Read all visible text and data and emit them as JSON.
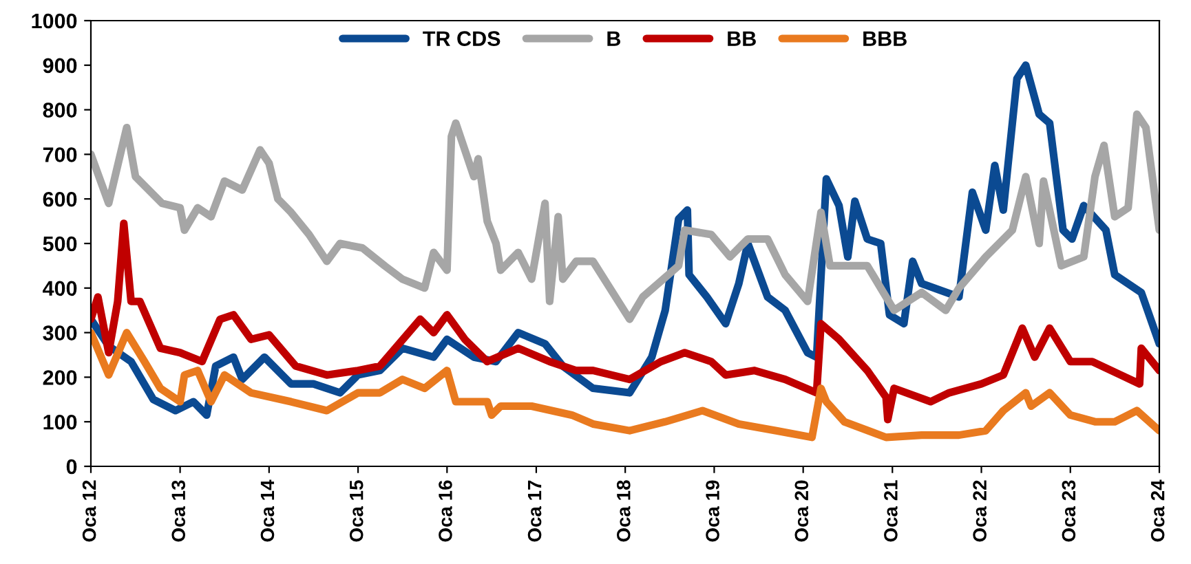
{
  "chart_data": {
    "type": "line",
    "xlim": [
      "2012-01-01",
      "2024-01-01"
    ],
    "ylim": [
      0,
      1000
    ],
    "xticks": [
      {
        "value": "2012-01-01",
        "label": "Oca 12"
      },
      {
        "value": "2013-01-01",
        "label": "Oca 13"
      },
      {
        "value": "2014-01-01",
        "label": "Oca 14"
      },
      {
        "value": "2015-01-01",
        "label": "Oca 15"
      },
      {
        "value": "2016-01-01",
        "label": "Oca 16"
      },
      {
        "value": "2017-01-01",
        "label": "Oca 17"
      },
      {
        "value": "2018-01-01",
        "label": "Oca 18"
      },
      {
        "value": "2019-01-01",
        "label": "Oca 19"
      },
      {
        "value": "2020-01-01",
        "label": "Oca 20"
      },
      {
        "value": "2021-01-01",
        "label": "Oca 21"
      },
      {
        "value": "2022-01-01",
        "label": "Oca 22"
      },
      {
        "value": "2023-01-01",
        "label": "Oca 23"
      },
      {
        "value": "2024-01-01",
        "label": "Oca 24"
      }
    ],
    "yticks": [
      0,
      100,
      200,
      300,
      400,
      500,
      600,
      700,
      800,
      900,
      1000
    ],
    "grid": false,
    "legend": "top",
    "marker": "none",
    "line_style": "solid",
    "series": [
      {
        "name": "TR CDS",
        "color": "#0b4a92",
        "x": [
          "2012-01-01",
          "2012-03-14",
          "2012-06-14",
          "2012-09-13",
          "2012-12-13",
          "2013-02-25",
          "2013-04-20",
          "2013-05-27",
          "2013-08-08",
          "2013-09-13",
          "2013-12-13",
          "2014-04-01",
          "2014-07-02",
          "2014-10-19",
          "2015-01-01",
          "2015-04-01",
          "2015-07-02",
          "2015-11-07",
          "2016-01-01",
          "2016-04-20",
          "2016-07-20",
          "2016-10-19",
          "2017-02-06",
          "2017-04-20",
          "2017-08-22",
          "2018-01-19",
          "2018-04-20",
          "2018-06-14",
          "2018-08-08",
          "2018-09-13",
          "2018-09-20",
          "2018-12-02",
          "2019-02-17",
          "2019-04-12",
          "2019-05-19",
          "2019-08-08",
          "2019-10-19",
          "2020-01-19",
          "2020-02-25",
          "2020-04-05",
          "2020-05-27",
          "2020-07-02",
          "2020-07-31",
          "2020-09-20",
          "2020-11-14",
          "2020-12-20",
          "2021-02-17",
          "2021-03-25",
          "2021-05-01",
          "2021-10-01",
          "2021-11-25",
          "2022-01-19",
          "2022-02-25",
          "2022-04-01",
          "2022-05-27",
          "2022-07-02",
          "2022-08-26",
          "2022-10-08",
          "2022-12-02",
          "2023-01-08",
          "2023-02-25",
          "2023-05-27",
          "2023-07-02",
          "2023-10-19",
          "2024-01-01"
        ],
        "values": [
          330,
          270,
          235,
          150,
          125,
          145,
          115,
          225,
          245,
          195,
          245,
          185,
          185,
          165,
          205,
          215,
          265,
          245,
          285,
          245,
          235,
          300,
          275,
          225,
          175,
          165,
          245,
          350,
          555,
          575,
          430,
          380,
          320,
          410,
          500,
          380,
          350,
          255,
          245,
          645,
          585,
          470,
          595,
          510,
          500,
          340,
          320,
          460,
          410,
          380,
          615,
          530,
          675,
          575,
          870,
          900,
          790,
          770,
          530,
          510,
          585,
          530,
          430,
          390,
          275
        ]
      },
      {
        "name": "B",
        "color": "#a6a6a6",
        "x": [
          "2012-01-01",
          "2012-03-14",
          "2012-05-27",
          "2012-07-02",
          "2012-10-19",
          "2013-01-01",
          "2013-01-19",
          "2013-03-14",
          "2013-05-08",
          "2013-07-02",
          "2013-09-13",
          "2013-11-25",
          "2014-01-01",
          "2014-02-06",
          "2014-04-01",
          "2014-06-14",
          "2014-08-26",
          "2014-10-19",
          "2015-01-19",
          "2015-04-20",
          "2015-07-02",
          "2015-10-01",
          "2015-11-07",
          "2016-01-01",
          "2016-01-19",
          "2016-02-06",
          "2016-04-20",
          "2016-05-08",
          "2016-06-14",
          "2016-07-20",
          "2016-08-08",
          "2016-10-19",
          "2016-12-13",
          "2017-02-06",
          "2017-02-25",
          "2017-04-01",
          "2017-04-20",
          "2017-06-14",
          "2017-08-22",
          "2018-01-19",
          "2018-03-14",
          "2018-08-08",
          "2018-09-02",
          "2018-12-20",
          "2019-03-07",
          "2019-05-19",
          "2019-08-08",
          "2019-10-19",
          "2020-01-19",
          "2020-03-14",
          "2020-04-20",
          "2020-09-20",
          "2021-01-08",
          "2021-05-01",
          "2021-08-08",
          "2021-10-01",
          "2022-01-19",
          "2022-05-08",
          "2022-07-02",
          "2022-08-26",
          "2022-09-13",
          "2022-11-25",
          "2023-02-25",
          "2023-04-12",
          "2023-05-19",
          "2023-07-02",
          "2023-08-26",
          "2023-10-01",
          "2023-11-07",
          "2024-01-01"
        ],
        "values": [
          700,
          590,
          760,
          650,
          590,
          580,
          530,
          580,
          560,
          640,
          620,
          710,
          680,
          600,
          570,
          520,
          460,
          500,
          490,
          450,
          420,
          400,
          480,
          440,
          740,
          770,
          650,
          690,
          550,
          500,
          440,
          480,
          420,
          590,
          370,
          560,
          420,
          460,
          460,
          330,
          380,
          450,
          530,
          520,
          470,
          510,
          510,
          430,
          370,
          570,
          450,
          450,
          350,
          390,
          350,
          400,
          470,
          530,
          650,
          500,
          640,
          450,
          470,
          650,
          720,
          560,
          580,
          790,
          760,
          530
        ]
      },
      {
        "name": "BB",
        "color": "#c00000",
        "x": [
          "2012-01-01",
          "2012-01-30",
          "2012-03-14",
          "2012-04-20",
          "2012-05-15",
          "2012-06-14",
          "2012-07-20",
          "2012-10-12",
          "2013-01-01",
          "2013-04-01",
          "2013-06-14",
          "2013-08-08",
          "2013-10-19",
          "2014-01-01",
          "2014-04-20",
          "2014-08-26",
          "2015-01-01",
          "2015-04-01",
          "2015-09-13",
          "2015-11-07",
          "2016-01-01",
          "2016-03-14",
          "2016-06-14",
          "2016-10-19",
          "2017-02-25",
          "2017-06-14",
          "2017-08-22",
          "2018-01-19",
          "2018-05-27",
          "2018-09-02",
          "2018-12-20",
          "2019-02-17",
          "2019-06-14",
          "2019-10-19",
          "2020-02-25",
          "2020-03-14",
          "2020-05-27",
          "2020-09-20",
          "2020-12-06",
          "2020-12-13",
          "2021-01-08",
          "2021-06-07",
          "2021-08-22",
          "2022-01-01",
          "2022-04-01",
          "2022-06-18",
          "2022-08-08",
          "2022-10-08",
          "2023-01-01",
          "2023-04-01",
          "2023-07-27",
          "2023-10-12",
          "2023-10-19",
          "2024-01-01"
        ],
        "values": [
          330,
          380,
          255,
          370,
          545,
          370,
          370,
          265,
          255,
          235,
          330,
          340,
          285,
          295,
          225,
          205,
          215,
          225,
          330,
          300,
          340,
          285,
          235,
          265,
          235,
          215,
          215,
          195,
          235,
          255,
          235,
          205,
          215,
          195,
          165,
          320,
          285,
          215,
          155,
          105,
          175,
          145,
          165,
          185,
          205,
          310,
          245,
          310,
          235,
          235,
          205,
          185,
          265,
          215
        ]
      },
      {
        "name": "BBB",
        "color": "#e97a1f",
        "x": [
          "2012-01-01",
          "2012-03-14",
          "2012-05-27",
          "2012-08-08",
          "2012-10-12",
          "2013-01-01",
          "2013-01-19",
          "2013-03-14",
          "2013-05-08",
          "2013-07-02",
          "2013-10-19",
          "2014-04-01",
          "2014-08-26",
          "2015-01-01",
          "2015-04-01",
          "2015-07-02",
          "2015-10-01",
          "2016-01-01",
          "2016-02-06",
          "2016-06-14",
          "2016-07-02",
          "2016-08-08",
          "2016-12-13",
          "2017-05-27",
          "2017-08-22",
          "2018-01-19",
          "2018-06-14",
          "2018-11-14",
          "2019-04-12",
          "2019-09-13",
          "2020-02-06",
          "2020-03-14",
          "2020-04-05",
          "2020-06-18",
          "2020-12-06",
          "2021-05-01",
          "2021-10-01",
          "2022-01-19",
          "2022-04-01",
          "2022-07-02",
          "2022-07-24",
          "2022-10-08",
          "2023-01-01",
          "2023-04-12",
          "2023-07-02",
          "2023-10-01",
          "2024-01-01"
        ],
        "values": [
          300,
          205,
          300,
          235,
          175,
          145,
          205,
          215,
          145,
          205,
          165,
          145,
          125,
          165,
          165,
          195,
          175,
          215,
          145,
          145,
          115,
          135,
          135,
          115,
          95,
          80,
          100,
          125,
          95,
          80,
          65,
          175,
          145,
          100,
          65,
          70,
          70,
          80,
          125,
          165,
          135,
          165,
          115,
          100,
          100,
          125,
          80
        ]
      }
    ]
  }
}
